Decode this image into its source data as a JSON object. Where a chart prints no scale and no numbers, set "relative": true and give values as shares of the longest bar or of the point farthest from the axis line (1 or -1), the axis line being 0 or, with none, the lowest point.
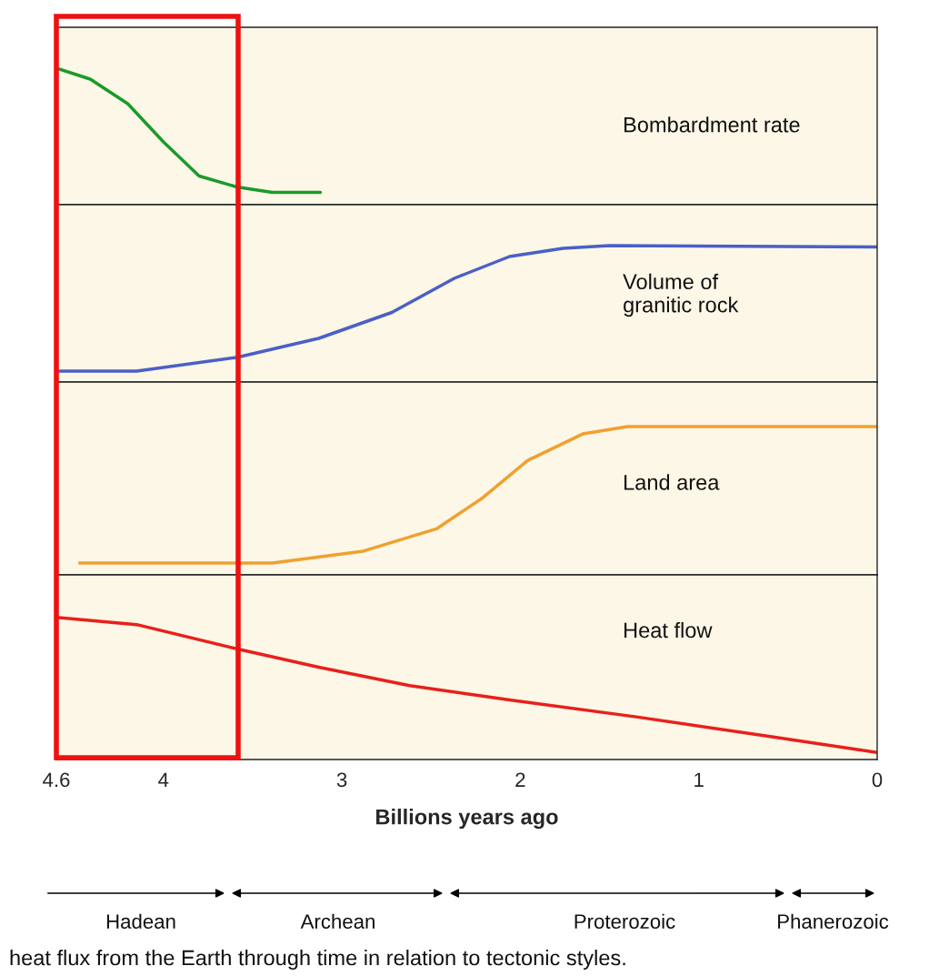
{
  "chart_data": [
    {
      "type": "line",
      "relative": true,
      "xlim": [
        4.6,
        0
      ],
      "series": [
        {
          "name": "Bombardment rate",
          "color": "#1a9a2a",
          "x": [
            4.6,
            4.41,
            4.2,
            4.0,
            3.8,
            3.59,
            3.39,
            3.12
          ],
          "values": [
            1.0,
            0.92,
            0.74,
            0.46,
            0.21,
            0.13,
            0.09,
            0.09
          ]
        }
      ]
    },
    {
      "type": "line",
      "relative": true,
      "xlim": [
        4.6,
        0
      ],
      "series": [
        {
          "name": "Volume of\ngranitic rock",
          "color": "#4a5fc8",
          "x": [
            4.6,
            4.15,
            3.59,
            3.13,
            2.72,
            2.37,
            2.06,
            1.76,
            1.5,
            0
          ],
          "values": [
            0.08,
            0.08,
            0.18,
            0.32,
            0.51,
            0.76,
            0.92,
            0.98,
            1.0,
            0.99
          ]
        }
      ]
    },
    {
      "type": "line",
      "relative": true,
      "xlim": [
        4.6,
        0
      ],
      "series": [
        {
          "name": "Land area",
          "color": "#f0a030",
          "x": [
            4.47,
            3.39,
            2.88,
            2.47,
            2.21,
            1.96,
            1.65,
            1.4,
            0
          ],
          "values": [
            0.08,
            0.08,
            0.16,
            0.31,
            0.52,
            0.77,
            0.95,
            1.0,
            1.0
          ]
        }
      ]
    },
    {
      "type": "line",
      "relative": true,
      "xlim": [
        4.6,
        0
      ],
      "xticks": [
        4.6,
        4,
        3,
        2,
        1,
        0
      ],
      "xlabel": "Billions years ago",
      "series": [
        {
          "name": "Heat flow",
          "color": "#e8201c",
          "x": [
            4.6,
            4.15,
            3.59,
            3.13,
            2.62,
            2.06,
            1.35,
            0.59,
            0
          ],
          "values": [
            1.0,
            0.95,
            0.78,
            0.65,
            0.52,
            0.42,
            0.3,
            0.16,
            0.05
          ]
        }
      ],
      "annotations": [
        "Hadean",
        "Archean",
        "Proterozoic",
        "Phanerozoic",
        "heat flux from the Earth through time in relation to tectonic styles."
      ]
    }
  ]
}
